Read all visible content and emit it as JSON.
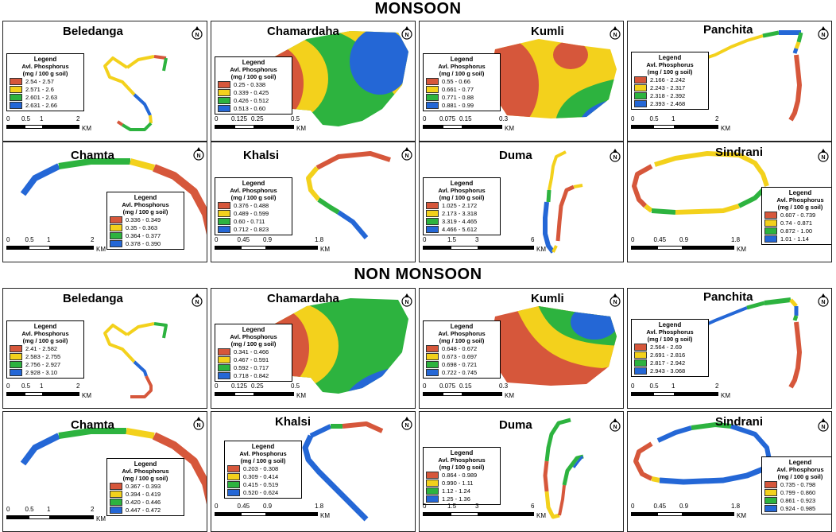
{
  "sections": {
    "monsoon": "MONSOON",
    "non_monsoon": "NON MONSOON"
  },
  "legend_title": "Legend",
  "legend_sub1": "Avl. Phosphorus",
  "legend_sub2": "(mg / 100 g soil)",
  "scale_unit": "KM",
  "north_symbol": "N",
  "colors": {
    "class1": "#d6573b",
    "class2": "#f3d11c",
    "class3": "#2db33f",
    "class4": "#2467d6"
  },
  "monsoon": [
    {
      "name": "Beledanga",
      "ranges": [
        "2.54 - 2.57",
        "2.571 - 2.6",
        "2.601 - 2.63",
        "2.631 - 2.66"
      ],
      "scale": [
        "0",
        "0.5",
        "1",
        "2"
      ]
    },
    {
      "name": "Chamardaha",
      "ranges": [
        "0.25 - 0.338",
        "0.339 - 0.425",
        "0.426 - 0.512",
        "0.513 - 0.60"
      ],
      "scale": [
        "0",
        "0.125",
        "0.25",
        "0.5"
      ]
    },
    {
      "name": "Kumli",
      "ranges": [
        "0.55 - 0.66",
        "0.661 - 0.77",
        "0.771 - 0.88",
        "0.881 - 0.99"
      ],
      "scale": [
        "0",
        "0.075",
        "0.15",
        "0.3"
      ]
    },
    {
      "name": "Panchita",
      "ranges": [
        "2.166 - 2.242",
        "2.243 - 2.317",
        "2.318 - 2.392",
        "2.393 - 2.468"
      ],
      "scale": [
        "0",
        "0.5",
        "1",
        "2"
      ]
    },
    {
      "name": "Chamta",
      "ranges": [
        "0.336 - 0.349",
        "0.35 - 0.363",
        "0.364 - 0.377",
        "0.378 - 0.390"
      ],
      "scale": [
        "0",
        "0.5",
        "1",
        "2"
      ]
    },
    {
      "name": "Khalsi",
      "ranges": [
        "0.376 - 0.488",
        "0.489 - 0.599",
        "0.60 - 0.711",
        "0.712 - 0.823"
      ],
      "scale": [
        "0",
        "0.45",
        "0.9",
        "1.8"
      ]
    },
    {
      "name": "Duma",
      "ranges": [
        "1.025 - 2.172",
        "2.173 - 3.318",
        "3.319 - 4.465",
        "4.466 - 5.612"
      ],
      "scale": [
        "0",
        "1.5",
        "3",
        "6"
      ]
    },
    {
      "name": "Sindrani",
      "ranges": [
        "0.607 - 0.739",
        "0.74 - 0.871",
        "0.872 - 1.00",
        "1.01 - 1.14"
      ],
      "scale": [
        "0",
        "0.45",
        "0.9",
        "1.8"
      ]
    }
  ],
  "non_monsoon": [
    {
      "name": "Beledanga",
      "ranges": [
        "2.41 - 2.582",
        "2.583 - 2.755",
        "2.756 - 2.927",
        "2.928 - 3.10"
      ],
      "scale": [
        "0",
        "0.5",
        "1",
        "2"
      ]
    },
    {
      "name": "Chamardaha",
      "ranges": [
        "0.341 - 0.466",
        "0.467 - 0.591",
        "0.592 - 0.717",
        "0.718 - 0.842"
      ],
      "scale": [
        "0",
        "0.125",
        "0.25",
        "0.5"
      ]
    },
    {
      "name": "Kumli",
      "ranges": [
        "0.648 - 0.672",
        "0.673 - 0.697",
        "0.698 - 0.721",
        "0.722 - 0.745"
      ],
      "scale": [
        "0",
        "0.075",
        "0.15",
        "0.3"
      ]
    },
    {
      "name": "Panchita",
      "ranges": [
        "2.564 - 2.69",
        "2.691 - 2.816",
        "2.817 - 2.942",
        "2.943 - 3.068"
      ],
      "scale": [
        "0",
        "0.5",
        "1",
        "2"
      ]
    },
    {
      "name": "Chamta",
      "ranges": [
        "0.367 - 0.393",
        "0.394 - 0.419",
        "0.420 - 0.446",
        "0.447 - 0.472"
      ],
      "scale": [
        "0",
        "0.5",
        "1",
        "2"
      ]
    },
    {
      "name": "Khalsi",
      "ranges": [
        "0.203 - 0.308",
        "0.309 - 0.414",
        "0.415 - 0.519",
        "0.520 - 0.624"
      ],
      "scale": [
        "0",
        "0.45",
        "0.9",
        "1.8"
      ]
    },
    {
      "name": "Duma",
      "ranges": [
        "0.864 - 0.989",
        "0.990 - 1.11",
        "1.12 - 1.24",
        "1.25 - 1.36"
      ],
      "scale": [
        "0",
        "1.5",
        "3",
        "6"
      ]
    },
    {
      "name": "Sindrani",
      "ranges": [
        "0.735 - 0.798",
        "0.799 - 0.860",
        "0.861 - 0.923",
        "0.924 - 0.985"
      ],
      "scale": [
        "0",
        "0.45",
        "0.9",
        "1.8"
      ]
    }
  ]
}
